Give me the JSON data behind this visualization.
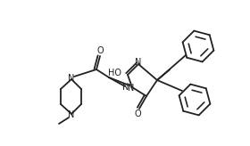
{
  "background_color": "#ffffff",
  "line_color": "#222222",
  "line_width": 1.3,
  "font_size": 7.0,
  "fig_width": 2.8,
  "fig_height": 1.64,
  "dpi": 100,
  "xlim": [
    0,
    280
  ],
  "ylim": [
    0,
    164
  ]
}
